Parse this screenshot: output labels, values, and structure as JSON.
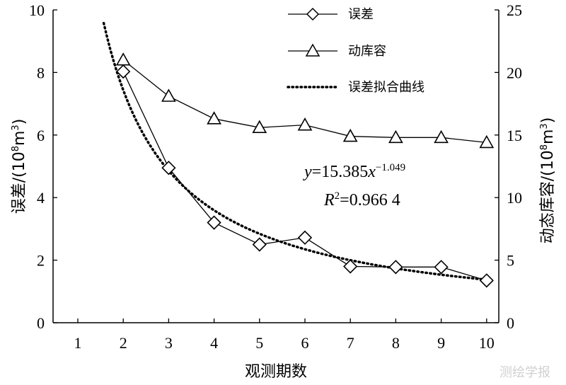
{
  "chart_data": {
    "type": "line",
    "x": [
      2,
      3,
      4,
      5,
      6,
      7,
      8,
      9,
      10
    ],
    "x_ticks": [
      "1",
      "2",
      "3",
      "4",
      "5",
      "6",
      "7",
      "8",
      "9",
      "10"
    ],
    "xlabel": "观测期数",
    "ylabel_left": "误差/(10",
    "ylabel_left_sup": "8",
    "ylabel_left_mid": "m",
    "ylabel_left_sup2": "3",
    "ylabel_left_end": ")",
    "ylabel_right": "动态库容/(10",
    "ylabel_right_sup": "8",
    "ylabel_right_mid": "m",
    "ylabel_right_sup2": "3",
    "ylabel_right_end": ")",
    "ylim_left": [
      0,
      10
    ],
    "ylim_right": [
      0,
      25
    ],
    "y_ticks_left": [
      "0",
      "2",
      "4",
      "6",
      "8",
      "10"
    ],
    "y_ticks_right": [
      "0",
      "5",
      "10",
      "15",
      "20",
      "25"
    ],
    "series": [
      {
        "name": "误差",
        "axis": "left",
        "marker": "diamond",
        "values": [
          8.03,
          4.95,
          3.2,
          2.5,
          2.72,
          1.8,
          1.78,
          1.78,
          1.35
        ]
      },
      {
        "name": "动库容",
        "axis": "right",
        "marker": "triangle",
        "values": [
          21.0,
          18.1,
          16.3,
          15.6,
          15.8,
          14.9,
          14.8,
          14.8,
          14.4
        ]
      }
    ],
    "fit": {
      "name": "误差拟合曲线",
      "a": 15.385,
      "b": -1.049,
      "x_start": 1.5,
      "x_end": 10
    },
    "equation": {
      "y": "y",
      "eq_mid": "=15.385",
      "x": "x",
      "exp": "−1.049",
      "r": "R",
      "r_sup": "2",
      "r_val": "=0.966 4"
    },
    "grid": false,
    "legend_position": "top-right"
  },
  "watermark": "测绘学报"
}
